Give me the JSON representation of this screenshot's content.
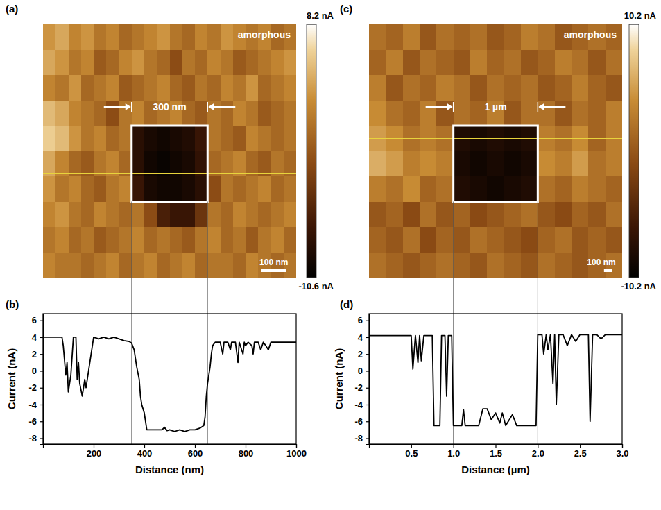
{
  "chart_data": [
    {
      "type": "heatmap",
      "panel": "(a)",
      "annotation": "amorphous",
      "tick_labels": false,
      "xlim": [
        0,
        1000
      ],
      "ylim": [
        0,
        1000
      ],
      "cells": [
        [
          3,
          4,
          2,
          3,
          1,
          2,
          0,
          1,
          2,
          3,
          1,
          0,
          2,
          1,
          3,
          2,
          1,
          2,
          0,
          1
        ],
        [
          4,
          3,
          1,
          2,
          -1,
          0,
          2,
          3,
          1,
          0,
          -2,
          1,
          0,
          2,
          1,
          -1,
          0,
          1,
          2,
          3
        ],
        [
          2,
          1,
          3,
          0,
          1,
          2,
          -1,
          0,
          1,
          2,
          0,
          -1,
          1,
          0,
          2,
          1,
          3,
          0,
          1,
          2
        ],
        [
          5,
          4,
          2,
          1,
          0,
          -2,
          1,
          2,
          0,
          1,
          2,
          0,
          -1,
          1,
          0,
          2,
          1,
          -1,
          0,
          1
        ],
        [
          6,
          5,
          3,
          1,
          2,
          0,
          1,
          -8,
          -9,
          -9.5,
          -9,
          -8.5,
          -7,
          1,
          0,
          -1,
          2,
          1,
          0,
          1
        ],
        [
          4,
          2,
          0,
          -1,
          1,
          2,
          0,
          -8,
          -9.5,
          -10,
          -9.5,
          -9,
          -7.5,
          0,
          1,
          2,
          0,
          -1,
          1,
          0
        ],
        [
          3,
          1,
          2,
          0,
          -1,
          1,
          2,
          -7,
          -9,
          -9.5,
          -9.5,
          -9,
          -8,
          -2,
          1,
          0,
          1,
          2,
          0,
          1
        ],
        [
          2,
          3,
          1,
          0,
          2,
          1,
          0,
          1,
          -2,
          -6,
          -7,
          -7,
          -4,
          1,
          0,
          2,
          1,
          0,
          1,
          2
        ],
        [
          1,
          2,
          0,
          1,
          -1,
          0,
          1,
          2,
          0,
          1,
          0,
          -1,
          1,
          2,
          0,
          1,
          -1,
          1,
          2,
          0
        ],
        [
          2,
          1,
          1,
          0,
          1,
          2,
          0,
          1,
          2,
          0,
          1,
          2,
          0,
          1,
          1,
          0,
          2,
          1,
          0,
          1
        ]
      ],
      "colorbar": {
        "range": [
          -10.6,
          8.2
        ],
        "ticks": [
          {
            "value": 8.2,
            "label": "8.2 nA"
          },
          {
            "value": -10.6,
            "label": "-10.6 nA"
          }
        ]
      },
      "box": {
        "x": [
          350,
          650
        ],
        "y": [
          400,
          700
        ],
        "label": "300 nm"
      },
      "profile_y": 590,
      "scale_bar": {
        "value": 100,
        "label": "100 nm"
      }
    },
    {
      "type": "line",
      "panel": "(b)",
      "xlabel": "Distance (nm)",
      "ylabel": "Current (nA)",
      "color": "#000000",
      "xlim": [
        0,
        1000
      ],
      "ylim": [
        -8.7,
        6.8
      ],
      "xticks": [
        200,
        400,
        600,
        800,
        1000
      ],
      "yticks": [
        -8,
        -6,
        -4,
        -2,
        0,
        2,
        4,
        6
      ],
      "x": [
        0,
        20,
        40,
        60,
        75,
        80,
        90,
        95,
        100,
        110,
        120,
        130,
        135,
        140,
        145,
        155,
        165,
        170,
        180,
        190,
        200,
        220,
        240,
        260,
        280,
        300,
        320,
        340,
        350,
        360,
        370,
        380,
        385,
        390,
        400,
        405,
        410,
        440,
        470,
        480,
        490,
        500,
        520,
        540,
        560,
        580,
        600,
        620,
        635,
        640,
        645,
        650,
        660,
        665,
        670,
        680,
        700,
        710,
        715,
        730,
        740,
        745,
        760,
        770,
        775,
        790,
        795,
        800,
        810,
        825,
        830,
        835,
        850,
        860,
        870,
        880,
        890,
        900,
        950,
        1000
      ],
      "values": [
        4,
        4,
        4,
        4,
        4,
        3,
        -0.5,
        1,
        -2.5,
        -0.5,
        4,
        4,
        -1,
        1,
        -1.5,
        -3,
        -1,
        -2,
        0,
        2,
        4,
        3.8,
        4,
        3.8,
        4,
        3.8,
        3.6,
        3.5,
        3.3,
        2.5,
        0.5,
        -1,
        -3,
        -4,
        -5,
        -6,
        -7,
        -7,
        -7,
        -6.7,
        -7.1,
        -7,
        -7.2,
        -7,
        -7.2,
        -7,
        -7,
        -6.8,
        -6.5,
        -5.5,
        -3,
        -1.5,
        0.5,
        2,
        3,
        3.4,
        3.4,
        2,
        3.4,
        3.4,
        2.5,
        3.4,
        3.4,
        1,
        3.4,
        2,
        3.4,
        3,
        3.4,
        3,
        2,
        3.4,
        3.4,
        2.5,
        3.4,
        3,
        2.5,
        3.4,
        3.4,
        3.4
      ]
    },
    {
      "type": "heatmap",
      "panel": "(c)",
      "annotation": "amorphous",
      "tick_labels": false,
      "xlim": [
        0,
        3
      ],
      "ylim": [
        0,
        3
      ],
      "cells": [
        [
          2,
          1,
          3,
          0,
          2,
          1,
          2,
          0,
          1,
          3,
          2,
          0,
          1,
          2,
          1
        ],
        [
          1,
          3,
          0,
          2,
          1,
          0,
          3,
          1,
          2,
          0,
          1,
          3,
          2,
          0,
          2
        ],
        [
          3,
          0,
          2,
          1,
          3,
          2,
          0,
          2,
          1,
          2,
          0,
          1,
          3,
          1,
          0
        ],
        [
          4,
          2,
          1,
          3,
          0,
          2,
          1,
          3,
          0,
          2,
          2,
          0,
          2,
          1,
          3
        ],
        [
          5,
          4,
          2,
          3,
          2,
          -8,
          -8.5,
          -8,
          -8.5,
          -8,
          3,
          2,
          4,
          1,
          3
        ],
        [
          6,
          5,
          3,
          4,
          3,
          -8.5,
          -9,
          -8.5,
          -9,
          -8.5,
          4,
          3,
          5,
          2,
          3
        ],
        [
          3,
          2,
          4,
          1,
          2,
          -8,
          -8.5,
          -9,
          -8.5,
          -8,
          2,
          1,
          3,
          2,
          1
        ],
        [
          0,
          1,
          -1,
          2,
          0,
          1,
          -1,
          0,
          1,
          2,
          0,
          -1,
          1,
          0,
          2
        ],
        [
          1,
          0,
          2,
          -1,
          1,
          0,
          2,
          1,
          0,
          -1,
          1,
          2,
          0,
          1,
          0
        ],
        [
          2,
          1,
          0,
          1,
          2,
          1,
          0,
          2,
          1,
          0,
          2,
          1,
          0,
          1,
          2
        ]
      ],
      "colorbar": {
        "range": [
          -10.2,
          10.2
        ],
        "ticks": [
          {
            "value": 10.2,
            "label": "10.2 nA"
          },
          {
            "value": -10.2,
            "label": "-10.2 nA"
          }
        ]
      },
      "box": {
        "x": [
          1,
          2
        ],
        "y": [
          1.2,
          2.1
        ],
        "label": "1 µm"
      },
      "profile_y": 1.35,
      "scale_bar": {
        "value": 0.1,
        "label": "100 nm"
      }
    },
    {
      "type": "line",
      "panel": "(d)",
      "xlabel": "Distance (µm)",
      "ylabel": "Current (nA)",
      "color": "#000000",
      "xlim": [
        0,
        3
      ],
      "ylim": [
        -8.7,
        6.8
      ],
      "xticks": [
        0.5,
        {
          "value": 1,
          "label": "1.0"
        },
        1.5,
        {
          "value": 2,
          "label": "2.0"
        },
        2.5,
        {
          "value": 3,
          "label": "3.0"
        }
      ],
      "yticks": [
        -8,
        -6,
        -4,
        -2,
        0,
        2,
        4,
        6
      ],
      "x": [
        0,
        0.3,
        0.5,
        0.52,
        0.55,
        0.58,
        0.6,
        0.62,
        0.65,
        0.75,
        0.77,
        0.84,
        0.86,
        0.9,
        0.92,
        0.94,
        0.98,
        1.0,
        1.1,
        1.12,
        1.14,
        1.3,
        1.35,
        1.4,
        1.45,
        1.5,
        1.55,
        1.58,
        1.62,
        1.7,
        1.75,
        1.85,
        1.98,
        2.0,
        2.05,
        2.07,
        2.1,
        2.12,
        2.15,
        2.18,
        2.2,
        2.22,
        2.25,
        2.3,
        2.35,
        2.4,
        2.45,
        2.5,
        2.6,
        2.62,
        2.65,
        2.7,
        2.75,
        2.8,
        3.0
      ],
      "values": [
        4.2,
        4.2,
        4.2,
        0.2,
        4.2,
        1,
        4.2,
        1.2,
        4.2,
        4.2,
        -6.5,
        -6.5,
        4.2,
        4.2,
        -3,
        4.2,
        4.2,
        -6.5,
        -6.5,
        -4.6,
        -6.5,
        -6.5,
        -4.5,
        -4.5,
        -5.8,
        -5,
        -6.2,
        -5,
        -6.5,
        -5.2,
        -6.5,
        -6.5,
        -6.5,
        4.3,
        4.3,
        2,
        4.3,
        2.5,
        4.3,
        -1.5,
        4.3,
        -4,
        4.3,
        4.3,
        3,
        4.3,
        3.5,
        4.3,
        4.3,
        -6,
        4.3,
        4.3,
        3.8,
        4.3,
        4.3
      ]
    }
  ]
}
